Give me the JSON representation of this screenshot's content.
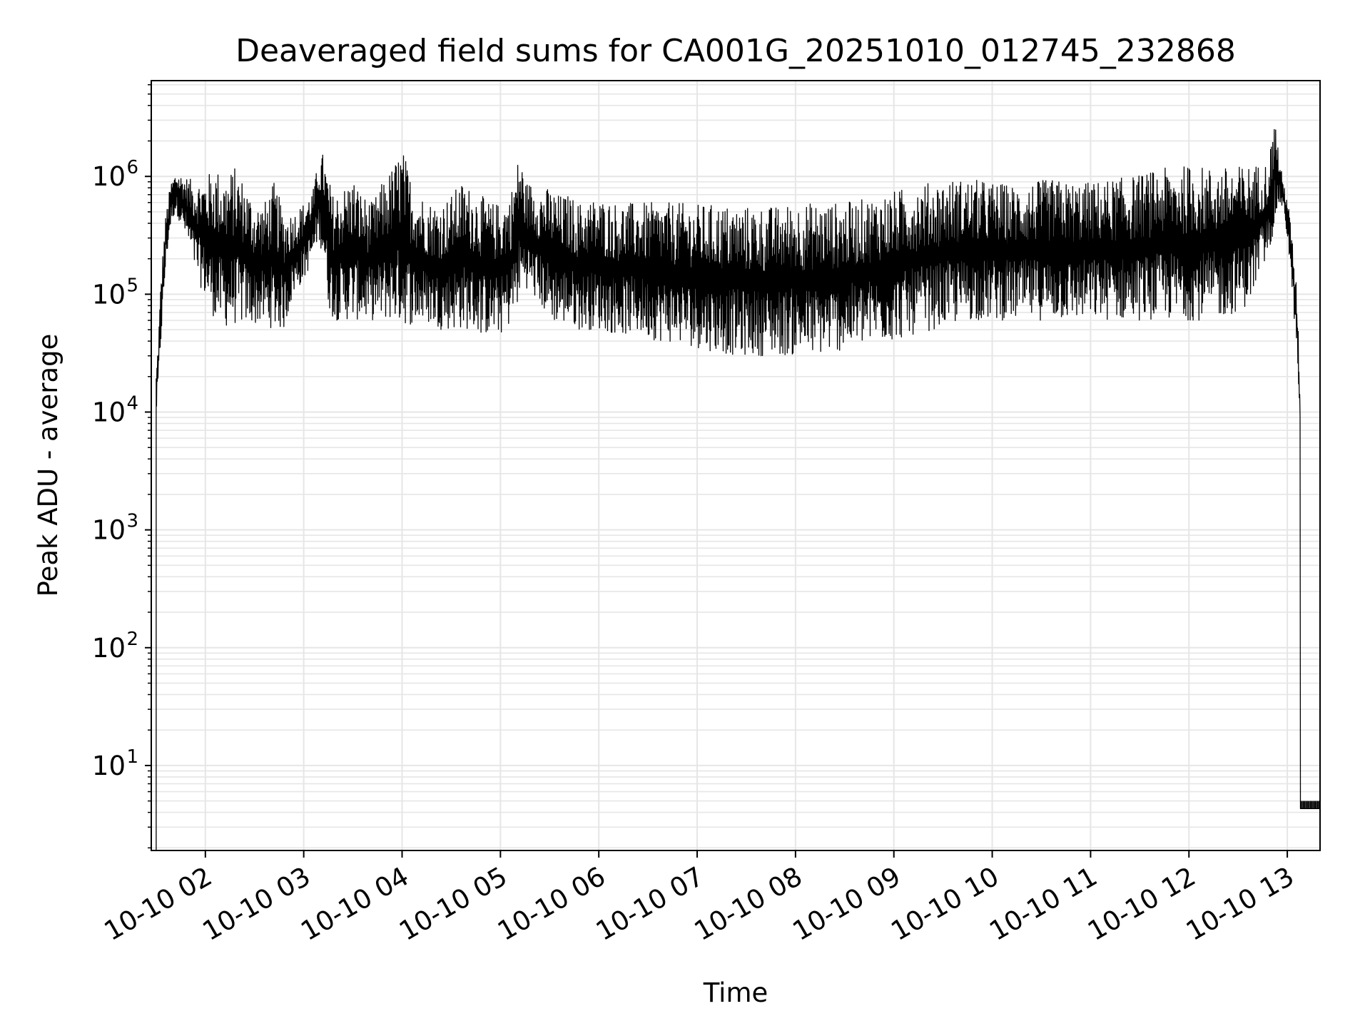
{
  "chart_data": {
    "type": "line",
    "title": "Deaveraged field sums for CA001G_20251010_012745_232868",
    "xlabel": "Time",
    "ylabel": "Peak ADU - average",
    "yscale": "log",
    "ylim": [
      1.9,
      6500000.0
    ],
    "xlim": [
      "2025-10-10 01:27",
      "2025-10-10 13:20"
    ],
    "grid": true,
    "line_color": "#000000",
    "grid_color": "#e6e6e6",
    "x_ticks": [
      {
        "label": "10-10 02",
        "hour": 2
      },
      {
        "label": "10-10 03",
        "hour": 3
      },
      {
        "label": "10-10 04",
        "hour": 4
      },
      {
        "label": "10-10 05",
        "hour": 5
      },
      {
        "label": "10-10 06",
        "hour": 6
      },
      {
        "label": "10-10 07",
        "hour": 7
      },
      {
        "label": "10-10 08",
        "hour": 8
      },
      {
        "label": "10-10 09",
        "hour": 9
      },
      {
        "label": "10-10 10",
        "hour": 10
      },
      {
        "label": "10-10 11",
        "hour": 11
      },
      {
        "label": "10-10 12",
        "hour": 12
      },
      {
        "label": "10-10 13",
        "hour": 13
      }
    ],
    "y_ticks": [
      {
        "base": "10",
        "exp": "1",
        "value": 10
      },
      {
        "base": "10",
        "exp": "2",
        "value": 100
      },
      {
        "base": "10",
        "exp": "3",
        "value": 1000
      },
      {
        "base": "10",
        "exp": "4",
        "value": 10000
      },
      {
        "base": "10",
        "exp": "5",
        "value": 100000
      },
      {
        "base": "10",
        "exp": "6",
        "value": 1000000
      }
    ],
    "series": [
      {
        "name": "deaveraged field sums",
        "hours": [
          1.5,
          1.52,
          1.55,
          1.6,
          1.65,
          1.7,
          1.8,
          1.9,
          2.0,
          2.1,
          2.2,
          2.3,
          2.4,
          2.5,
          2.6,
          2.7,
          2.8,
          2.9,
          3.0,
          3.1,
          3.15,
          3.2,
          3.25,
          3.3,
          3.4,
          3.5,
          3.6,
          3.7,
          3.8,
          3.9,
          4.0,
          4.1,
          4.2,
          4.3,
          4.4,
          4.5,
          4.6,
          4.7,
          4.8,
          4.9,
          5.0,
          5.1,
          5.2,
          5.25,
          5.3,
          5.4,
          5.5,
          5.6,
          5.7,
          5.8,
          5.9,
          6.0,
          6.2,
          6.4,
          6.6,
          6.8,
          7.0,
          7.2,
          7.4,
          7.6,
          7.8,
          8.0,
          8.2,
          8.4,
          8.6,
          8.8,
          9.0,
          9.2,
          9.4,
          9.6,
          9.8,
          10.0,
          10.2,
          10.4,
          10.6,
          10.8,
          11.0,
          11.2,
          11.4,
          11.6,
          11.8,
          12.0,
          12.2,
          12.4,
          12.6,
          12.8,
          12.88,
          12.92,
          12.96,
          13.0,
          13.05,
          13.1,
          13.12,
          13.14,
          13.2,
          13.3
        ],
        "envelope_high": [
          22000.0,
          40000.0,
          150000.0,
          500000.0,
          900000.0,
          1100000.0,
          1000000.0,
          900000.0,
          1000000.0,
          1200000.0,
          1000000.0,
          1200000.0,
          900000.0,
          600000.0,
          600000.0,
          900000.0,
          500000.0,
          500000.0,
          600000.0,
          800000.0,
          1400000.0,
          1600000.0,
          1000000.0,
          700000.0,
          800000.0,
          1000000.0,
          700000.0,
          600000.0,
          900000.0,
          1200000.0,
          1800000.0,
          900000.0,
          700000.0,
          600000.0,
          600000.0,
          700000.0,
          900000.0,
          800000.0,
          700000.0,
          600000.0,
          600000.0,
          700000.0,
          1700000.0,
          900000.0,
          900000.0,
          800000.0,
          800000.0,
          700000.0,
          700000.0,
          600000.0,
          650000.0,
          650000.0,
          600000.0,
          600000.0,
          600000.0,
          600000.0,
          580000.0,
          580000.0,
          560000.0,
          560000.0,
          560000.0,
          600000.0,
          600000.0,
          600000.0,
          620000.0,
          680000.0,
          750000.0,
          850000.0,
          900000.0,
          950000.0,
          950000.0,
          900000.0,
          850000.0,
          900000.0,
          950000.0,
          900000.0,
          900000.0,
          950000.0,
          1000000.0,
          1100000.0,
          1200000.0,
          1250000.0,
          1200000.0,
          1200000.0,
          1250000.0,
          1300000.0,
          3300000.0,
          1400000.0,
          900000.0,
          700000.0,
          300000.0,
          100000.0,
          30000.0,
          10000.0,
          4.3,
          4.3
        ],
        "envelope_low": [
          9000.0,
          15000.0,
          40000.0,
          180000.0,
          400000.0,
          500000.0,
          300000.0,
          150000.0,
          90000.0,
          60000.0,
          52000.0,
          55000.0,
          55000.0,
          55000.0,
          55000.0,
          50000.0,
          50000.0,
          100000.0,
          130000.0,
          200000.0,
          300000.0,
          200000.0,
          80000.0,
          60000.0,
          60000.0,
          60000.0,
          60000.0,
          60000.0,
          60000.0,
          60000.0,
          55000.0,
          55000.0,
          55000.0,
          55000.0,
          50000.0,
          50000.0,
          50000.0,
          50000.0,
          45000.0,
          45000.0,
          45000.0,
          55000.0,
          90000.0,
          120000.0,
          100000.0,
          80000.0,
          60000.0,
          55000.0,
          55000.0,
          50000.0,
          50000.0,
          50000.0,
          45000.0,
          45000.0,
          40000.0,
          38000.0,
          35000.0,
          32000.0,
          30000.0,
          30000.0,
          30000.0,
          30000.0,
          30000.0,
          32000.0,
          35000.0,
          38000.0,
          40000.0,
          45000.0,
          50000.0,
          55000.0,
          60000.0,
          60000.0,
          60000.0,
          60000.0,
          60000.0,
          60000.0,
          60000.0,
          60000.0,
          60000.0,
          60000.0,
          60000.0,
          60000.0,
          60000.0,
          65000.0,
          80000.0,
          200000.0,
          400000.0,
          600000.0,
          500000.0,
          300000.0,
          100000.0,
          30000.0,
          10000.0,
          3000.0,
          4.3,
          4.3
        ]
      }
    ]
  }
}
